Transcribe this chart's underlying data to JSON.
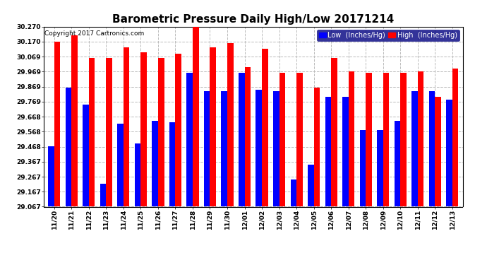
{
  "title": "Barometric Pressure Daily High/Low 20171214",
  "copyright": "Copyright 2017 Cartronics.com",
  "legend_low": "Low  (Inches/Hg)",
  "legend_high": "High  (Inches/Hg)",
  "dates": [
    "11/20",
    "11/21",
    "11/22",
    "11/23",
    "11/24",
    "11/25",
    "11/26",
    "11/27",
    "11/28",
    "11/29",
    "11/30",
    "12/01",
    "12/02",
    "12/03",
    "12/04",
    "12/05",
    "12/06",
    "12/07",
    "12/08",
    "12/09",
    "12/10",
    "12/11",
    "12/12",
    "12/13"
  ],
  "low_values": [
    29.468,
    29.86,
    29.75,
    29.22,
    29.62,
    29.49,
    29.64,
    29.63,
    29.96,
    29.84,
    29.84,
    29.96,
    29.85,
    29.84,
    29.25,
    29.35,
    29.8,
    29.8,
    29.58,
    29.58,
    29.64,
    29.84,
    29.84,
    29.78
  ],
  "high_values": [
    30.17,
    30.21,
    30.06,
    30.06,
    30.13,
    30.1,
    30.06,
    30.09,
    30.27,
    30.13,
    30.16,
    30.0,
    30.12,
    29.96,
    29.96,
    29.86,
    30.06,
    29.97,
    29.96,
    29.96,
    29.96,
    29.97,
    29.8,
    29.99
  ],
  "ymin": 29.067,
  "ymax": 30.27,
  "yticks": [
    29.067,
    29.167,
    29.267,
    29.367,
    29.468,
    29.568,
    29.668,
    29.769,
    29.869,
    29.969,
    30.069,
    30.17,
    30.27
  ],
  "bar_width": 0.35,
  "low_color": "#0000ff",
  "high_color": "#ff0000",
  "bg_color": "#ffffff",
  "grid_color": "#bbbbbb",
  "title_fontsize": 11,
  "tick_fontsize": 6.5,
  "legend_fontsize": 7,
  "legend_bg": "#000080",
  "copyright_fontsize": 6.5
}
